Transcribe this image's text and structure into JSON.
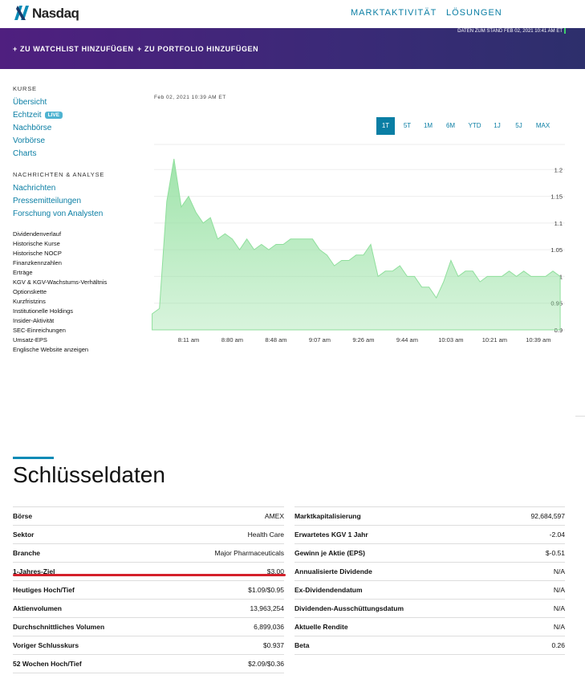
{
  "header": {
    "logo": "Nasdaq",
    "nav": [
      "MARKTAKTIVITÄT",
      "LÖSUNGEN"
    ],
    "data_stand": "DATEN ZUM STAND FEB 02, 2021 10:41 AM ET"
  },
  "actions": [
    "ZU WATCHLIST HINZUFÜGEN",
    "ZU PORTFOLIO HINZUFÜGEN"
  ],
  "sidebar": {
    "kurse_heading": "KURSE",
    "kurse_links": [
      "Übersicht",
      "Echtzeit",
      "Nachbörse",
      "Vorbörse",
      "Charts"
    ],
    "live_badge": "LIVE",
    "nachrichten_heading": "NACHRICHTEN & ANALYSE",
    "nachrichten_links": [
      "Nachrichten",
      "Pressemitteilungen",
      "Forschung von Analysten"
    ],
    "more_links": [
      "Dividendenverlauf",
      "Historische Kurse",
      "Historische NOCP",
      "Finanzkennzahlen",
      "Erträge",
      "KGV & KGV-Wachstums-Verhältnis",
      "Optionskette",
      "Kurzfristzins",
      "Institutionelle Holdings",
      "Insider-Aktivität",
      "SEC-Einreichungen",
      "Umsatz-EPS",
      "Englische Website anzeigen"
    ]
  },
  "chart_controls": {
    "buttons": [
      "1T",
      "5T",
      "1M",
      "6M",
      "YTD",
      "1J",
      "5J",
      "MAX"
    ],
    "selected": 0
  },
  "chart_data": {
    "type": "area",
    "subtitle": "Feb 02, 2021 10:39 AM ET",
    "categories": [
      null,
      null,
      null,
      null,
      null,
      "8:11 am",
      null,
      null,
      null,
      null,
      null,
      "8:80 am",
      null,
      null,
      null,
      null,
      null,
      "8:48 am",
      null,
      null,
      null,
      null,
      null,
      "9:07 am",
      null,
      null,
      null,
      null,
      null,
      "9:26 am",
      null,
      null,
      null,
      null,
      null,
      "9:44 am",
      null,
      null,
      null,
      null,
      null,
      "10:03 am",
      null,
      null,
      null,
      null,
      null,
      "10:21 am",
      null,
      null,
      null,
      null,
      null,
      "10:39 am",
      null,
      null,
      null
    ],
    "values": [
      0.93,
      0.94,
      1.14,
      1.22,
      1.13,
      1.15,
      1.12,
      1.1,
      1.11,
      1.07,
      1.08,
      1.07,
      1.05,
      1.07,
      1.05,
      1.06,
      1.05,
      1.06,
      1.06,
      1.07,
      1.07,
      1.07,
      1.07,
      1.05,
      1.04,
      1.02,
      1.03,
      1.03,
      1.04,
      1.04,
      1.06,
      1.0,
      1.01,
      1.01,
      1.02,
      1.0,
      1.0,
      0.98,
      0.98,
      0.96,
      0.99,
      1.03,
      1.0,
      1.01,
      1.01,
      0.99,
      1.0,
      1.0,
      1.0,
      1.01,
      1.0,
      1.01,
      1.0,
      1.0,
      1.0,
      1.01,
      1.0
    ],
    "color": "#8fdf9c",
    "ylim": [
      0.9,
      1.25
    ],
    "yticks": [
      0.9,
      0.95,
      1,
      1.05,
      1.1,
      1.15,
      1.2
    ],
    "grid": true
  },
  "key_data": {
    "title": "Schlüsseldaten",
    "left": [
      [
        "Börse",
        "AMEX"
      ],
      [
        "Sektor",
        "Health Care"
      ],
      [
        "Branche",
        "Major Pharmaceuticals"
      ],
      [
        "1-Jahres-Ziel",
        "$3.00"
      ],
      [
        "Heutiges Hoch/Tief",
        "$1.09/$0.95"
      ],
      [
        "Aktienvolumen",
        "13,963,254"
      ],
      [
        "Durchschnittliches Volumen",
        "6,899,036"
      ],
      [
        "Voriger Schlusskurs",
        "$0.937"
      ],
      [
        "52 Wochen Hoch/Tief",
        "$2.09/$0.36"
      ]
    ],
    "right": [
      [
        "Marktkapitalisierung",
        "92,684,597"
      ],
      [
        "Erwartetes KGV 1 Jahr",
        "-2.04"
      ],
      [
        "Gewinn je Aktie (EPS)",
        "$-0.51"
      ],
      [
        "Annualisierte Dividende",
        "N/A"
      ],
      [
        "Ex-Dividendendatum",
        "N/A"
      ],
      [
        "Dividenden-Ausschüttungsdatum",
        "N/A"
      ],
      [
        "Aktuelle Rendite",
        "N/A"
      ],
      [
        "Beta",
        "0.26"
      ]
    ]
  }
}
